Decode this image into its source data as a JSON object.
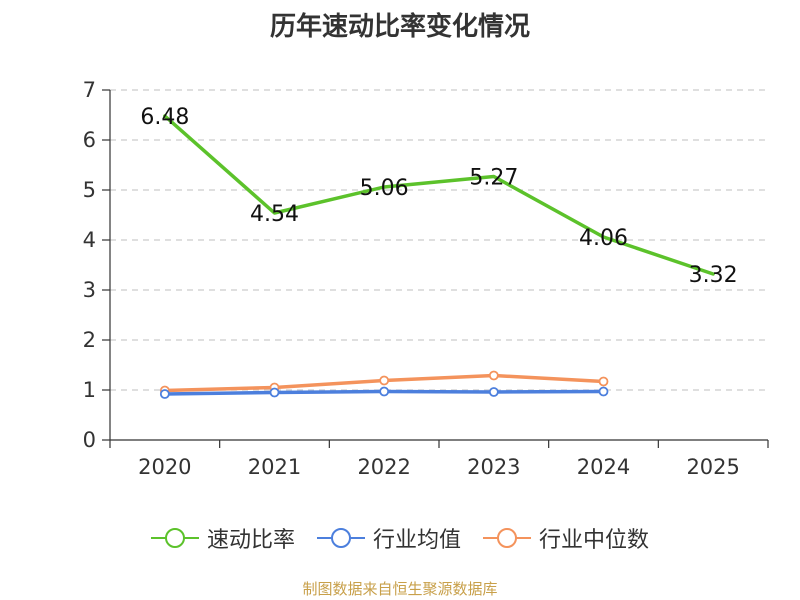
{
  "title": "历年速动比率变化情况",
  "source": "制图数据来自恒生聚源数据库",
  "colors": {
    "series0": "#5cc22b",
    "series1": "#4c7fdd",
    "series2": "#f4935c",
    "grid": "#cccccc",
    "axis": "#333333"
  },
  "chart_data": {
    "type": "line",
    "title": "历年速动比率变化情况",
    "xlabel": "",
    "ylabel": "",
    "categories": [
      "2020",
      "2021",
      "2022",
      "2023",
      "2024",
      "2025"
    ],
    "ylim": [
      0,
      7
    ],
    "yticks": [
      0,
      1,
      2,
      3,
      4,
      5,
      6,
      7
    ],
    "grid": true,
    "legend_position": "bottom",
    "series": [
      {
        "name": "速动比率",
        "values": [
          6.48,
          4.54,
          5.06,
          5.27,
          4.06,
          3.32
        ],
        "labels": [
          "6.48",
          "4.54",
          "5.06",
          "5.27",
          "4.06",
          "3.32"
        ],
        "show_markers": false
      },
      {
        "name": "行业均值",
        "values": [
          0.92,
          0.95,
          0.97,
          0.96,
          0.97,
          null
        ],
        "show_markers": true
      },
      {
        "name": "行业中位数",
        "values": [
          0.99,
          1.05,
          1.19,
          1.29,
          1.17,
          null
        ],
        "show_markers": true
      }
    ]
  }
}
